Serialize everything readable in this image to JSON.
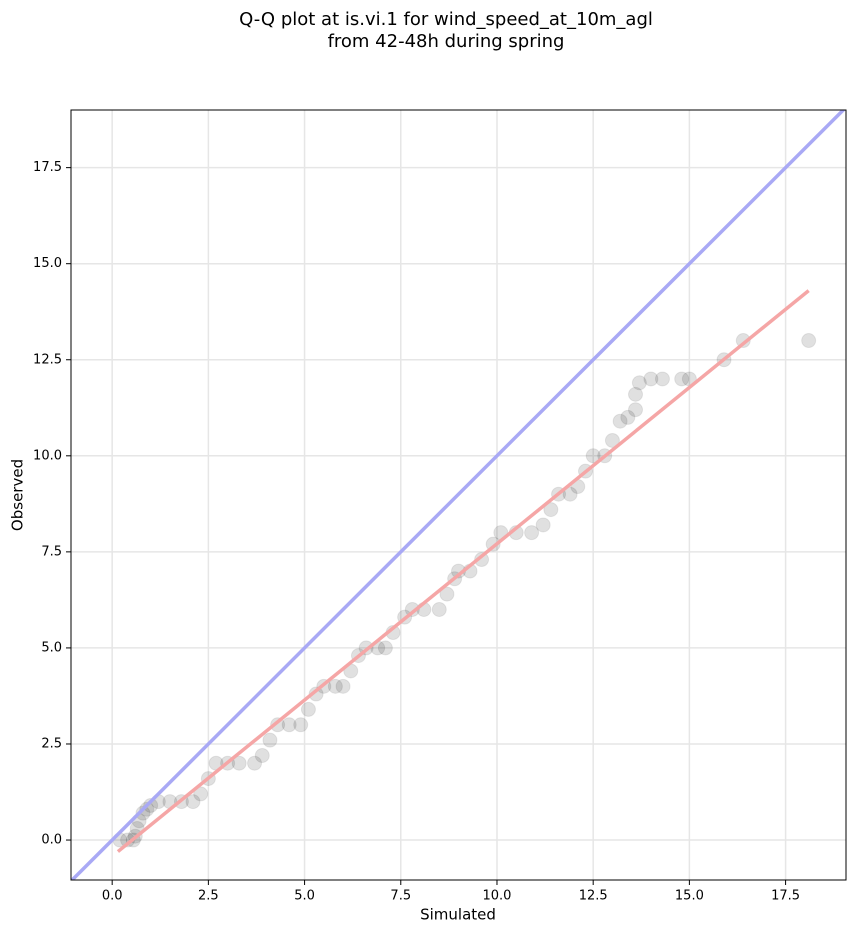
{
  "chart_data": {
    "type": "scatter",
    "title": "Q-Q plot at is.vi.1 for wind_speed_at_10m_agl",
    "subtitle": "from 42-48h during spring",
    "xlabel": "Simulated",
    "ylabel": "Observed",
    "xlim": [
      -1.07,
      19.07
    ],
    "ylim": [
      -1.04,
      19.0
    ],
    "xticks": [
      {
        "value": 0,
        "label": "0.0"
      },
      2.5,
      {
        "value": 5,
        "label": "5.0"
      },
      7.5,
      {
        "value": 10,
        "label": "10.0"
      },
      12.5,
      {
        "value": 15,
        "label": "15.0"
      },
      17.5
    ],
    "yticks": [
      {
        "value": 0,
        "label": "0.0"
      },
      2.5,
      {
        "value": 5,
        "label": "5.0"
      },
      7.5,
      {
        "value": 10,
        "label": "10.0"
      },
      12.5,
      {
        "value": 15,
        "label": "15.0"
      },
      17.5
    ],
    "grid": true,
    "points": {
      "color": "#000000",
      "x": [
        0.2,
        0.4,
        0.55,
        0.6,
        0.65,
        0.7,
        0.8,
        0.9,
        1.0,
        1.2,
        1.5,
        1.8,
        2.1,
        2.3,
        2.5,
        2.7,
        3.0,
        3.3,
        3.7,
        3.9,
        4.1,
        4.3,
        4.6,
        4.9,
        5.1,
        5.3,
        5.5,
        5.8,
        6.0,
        6.2,
        6.4,
        6.6,
        6.9,
        7.1,
        7.3,
        7.6,
        7.8,
        8.1,
        8.5,
        8.7,
        8.9,
        9.0,
        9.3,
        9.6,
        9.9,
        10.1,
        10.5,
        10.9,
        11.2,
        11.4,
        11.6,
        11.9,
        12.1,
        12.3,
        12.5,
        12.8,
        13.0,
        13.2,
        13.4,
        13.6,
        13.6,
        13.7,
        14.0,
        14.3,
        14.8,
        15.0,
        15.9,
        16.4,
        18.1
      ],
      "values": [
        0,
        0,
        0,
        0.1,
        0.3,
        0.5,
        0.7,
        0.8,
        0.9,
        1,
        1,
        1,
        1,
        1.2,
        1.6,
        2,
        2,
        2,
        2,
        2.2,
        2.6,
        3,
        3,
        3,
        3.4,
        3.8,
        4,
        4,
        4,
        4.4,
        4.8,
        5,
        5,
        5,
        5.4,
        5.8,
        6,
        6,
        6,
        6.4,
        6.8,
        7,
        7,
        7.3,
        7.7,
        8,
        8,
        8,
        8.2,
        8.6,
        9,
        9,
        9.2,
        9.6,
        10,
        10,
        10.4,
        10.9,
        11,
        11.2,
        11.6,
        11.9,
        12,
        12,
        12,
        12,
        12.5,
        13,
        13
      ]
    },
    "lines": [
      {
        "color": "#a9a9f5",
        "x": [
          -1.07,
          19.07
        ],
        "values": [
          -1.07,
          19.07
        ]
      },
      {
        "color": "#f5a6a6",
        "x": [
          0.15,
          18.1
        ],
        "values": [
          -0.3,
          14.3
        ]
      }
    ]
  }
}
